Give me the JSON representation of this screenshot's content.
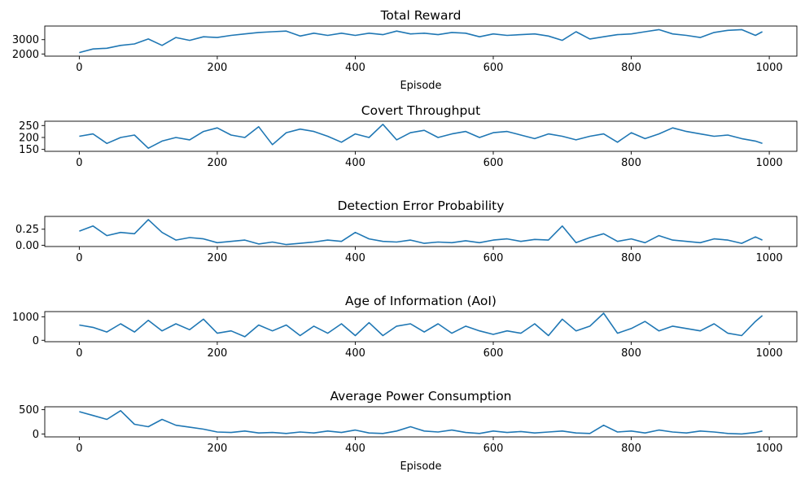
{
  "chart_data": [
    {
      "type": "line",
      "title": "Total Reward",
      "xlabel": "Episode",
      "xlim": [
        -50,
        1040
      ],
      "ylim": [
        1850,
        3950
      ],
      "xticks": [
        0,
        200,
        400,
        600,
        800,
        1000
      ],
      "yticks": [
        2000,
        3000
      ],
      "series": [
        {
          "x": [
            0,
            20,
            40,
            60,
            80,
            100,
            120,
            140,
            160,
            180,
            200,
            220,
            240,
            260,
            280,
            300,
            320,
            340,
            360,
            380,
            400,
            420,
            440,
            460,
            480,
            500,
            520,
            540,
            560,
            580,
            600,
            620,
            640,
            660,
            680,
            700,
            720,
            740,
            760,
            780,
            800,
            820,
            840,
            860,
            880,
            900,
            920,
            940,
            960,
            980,
            990
          ],
          "y": [
            2100,
            2350,
            2400,
            2600,
            2700,
            3050,
            2600,
            3150,
            2950,
            3200,
            3150,
            3300,
            3400,
            3500,
            3550,
            3600,
            3250,
            3450,
            3300,
            3450,
            3300,
            3450,
            3350,
            3600,
            3400,
            3450,
            3350,
            3500,
            3450,
            3200,
            3400,
            3300,
            3350,
            3400,
            3250,
            2950,
            3550,
            3050,
            3200,
            3350,
            3400,
            3550,
            3700,
            3400,
            3300,
            3150,
            3500,
            3650,
            3700,
            3300,
            3550
          ]
        }
      ]
    },
    {
      "type": "line",
      "title": "Covert Throughput",
      "xlabel": "",
      "xlim": [
        -50,
        1040
      ],
      "ylim": [
        142,
        268
      ],
      "xticks": [
        0,
        200,
        400,
        600,
        800,
        1000
      ],
      "yticks": [
        150,
        200,
        250
      ],
      "series": [
        {
          "x": [
            0,
            20,
            40,
            60,
            80,
            100,
            120,
            140,
            160,
            180,
            200,
            220,
            240,
            260,
            280,
            300,
            320,
            340,
            360,
            380,
            400,
            420,
            440,
            460,
            480,
            500,
            520,
            540,
            560,
            580,
            600,
            620,
            640,
            660,
            680,
            700,
            720,
            740,
            760,
            780,
            800,
            820,
            840,
            860,
            880,
            900,
            920,
            940,
            960,
            980,
            990
          ],
          "y": [
            205,
            215,
            175,
            200,
            210,
            155,
            185,
            200,
            190,
            225,
            240,
            210,
            200,
            245,
            170,
            220,
            235,
            225,
            205,
            180,
            215,
            200,
            255,
            190,
            220,
            230,
            200,
            215,
            225,
            200,
            220,
            225,
            210,
            195,
            215,
            205,
            190,
            205,
            215,
            180,
            220,
            195,
            215,
            240,
            225,
            215,
            205,
            210,
            195,
            185,
            175
          ]
        }
      ]
    },
    {
      "type": "line",
      "title": "Detection Error Probability",
      "xlabel": "",
      "xlim": [
        -50,
        1040
      ],
      "ylim": [
        -0.02,
        0.45
      ],
      "xticks": [
        0,
        200,
        400,
        600,
        800,
        1000
      ],
      "yticks": [
        0.0,
        0.25
      ],
      "ytick_labels": [
        "0.00",
        "0.25"
      ],
      "series": [
        {
          "x": [
            0,
            20,
            40,
            60,
            80,
            100,
            120,
            140,
            160,
            180,
            200,
            220,
            240,
            260,
            280,
            300,
            320,
            340,
            360,
            380,
            400,
            420,
            440,
            460,
            480,
            500,
            520,
            540,
            560,
            580,
            600,
            620,
            640,
            660,
            680,
            700,
            720,
            740,
            760,
            780,
            800,
            820,
            840,
            860,
            880,
            900,
            920,
            940,
            960,
            980,
            990
          ],
          "y": [
            0.22,
            0.3,
            0.15,
            0.2,
            0.18,
            0.4,
            0.2,
            0.08,
            0.12,
            0.1,
            0.04,
            0.06,
            0.08,
            0.02,
            0.05,
            0.01,
            0.03,
            0.05,
            0.08,
            0.06,
            0.2,
            0.1,
            0.06,
            0.05,
            0.08,
            0.03,
            0.05,
            0.04,
            0.07,
            0.04,
            0.08,
            0.1,
            0.06,
            0.09,
            0.08,
            0.3,
            0.04,
            0.12,
            0.18,
            0.06,
            0.1,
            0.04,
            0.15,
            0.08,
            0.06,
            0.04,
            0.1,
            0.08,
            0.03,
            0.13,
            0.08
          ]
        }
      ]
    },
    {
      "type": "line",
      "title": "Age of Information (AoI)",
      "xlabel": "",
      "xlim": [
        -50,
        1040
      ],
      "ylim": [
        -60,
        1220
      ],
      "xticks": [
        0,
        200,
        400,
        600,
        800,
        1000
      ],
      "yticks": [
        0,
        1000
      ],
      "series": [
        {
          "x": [
            0,
            20,
            40,
            60,
            80,
            100,
            120,
            140,
            160,
            180,
            200,
            220,
            240,
            260,
            280,
            300,
            320,
            340,
            360,
            380,
            400,
            420,
            440,
            460,
            480,
            500,
            520,
            540,
            560,
            580,
            600,
            620,
            640,
            660,
            680,
            700,
            720,
            740,
            760,
            780,
            800,
            820,
            840,
            860,
            880,
            900,
            920,
            940,
            960,
            980,
            990
          ],
          "y": [
            650,
            550,
            350,
            700,
            350,
            850,
            400,
            700,
            450,
            900,
            300,
            400,
            150,
            650,
            400,
            650,
            200,
            600,
            300,
            700,
            200,
            750,
            200,
            600,
            700,
            350,
            700,
            300,
            600,
            400,
            250,
            400,
            300,
            700,
            200,
            900,
            400,
            600,
            1150,
            300,
            500,
            800,
            400,
            600,
            500,
            400,
            700,
            300,
            200,
            800,
            1050
          ]
        }
      ]
    },
    {
      "type": "line",
      "title": "Average Power Consumption",
      "xlabel": "Episode",
      "xlim": [
        -50,
        1040
      ],
      "ylim": [
        -60,
        560
      ],
      "xticks": [
        0,
        200,
        400,
        600,
        800,
        1000
      ],
      "yticks": [
        0,
        500
      ],
      "series": [
        {
          "x": [
            0,
            20,
            40,
            60,
            80,
            100,
            120,
            140,
            160,
            180,
            200,
            220,
            240,
            260,
            280,
            300,
            320,
            340,
            360,
            380,
            400,
            420,
            440,
            460,
            480,
            500,
            520,
            540,
            560,
            580,
            600,
            620,
            640,
            660,
            680,
            700,
            720,
            740,
            760,
            780,
            800,
            820,
            840,
            860,
            880,
            900,
            920,
            940,
            960,
            980,
            990
          ],
          "y": [
            460,
            380,
            300,
            480,
            200,
            150,
            300,
            180,
            140,
            100,
            40,
            30,
            60,
            20,
            30,
            10,
            40,
            20,
            60,
            30,
            80,
            20,
            10,
            60,
            150,
            60,
            40,
            80,
            30,
            10,
            60,
            30,
            50,
            20,
            40,
            60,
            20,
            10,
            180,
            40,
            60,
            20,
            80,
            40,
            20,
            60,
            40,
            10,
            0,
            30,
            60
          ]
        }
      ]
    }
  ]
}
